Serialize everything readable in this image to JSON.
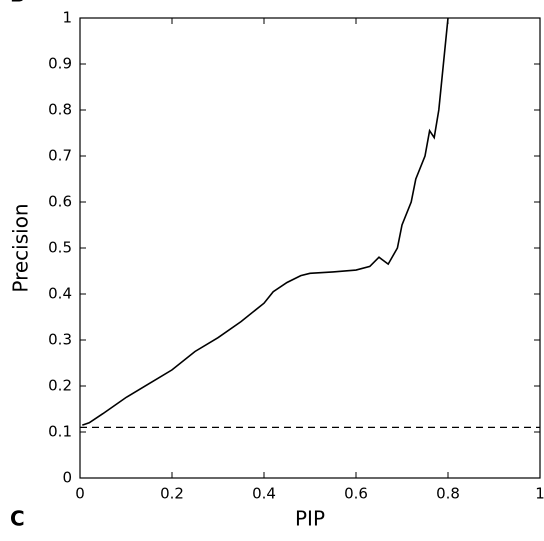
{
  "panel_labels": [
    "B",
    "C"
  ],
  "chart_data": {
    "type": "line",
    "xlabel": "PIP",
    "ylabel": "Precision",
    "x": [
      0.005,
      0.02,
      0.05,
      0.1,
      0.15,
      0.2,
      0.25,
      0.3,
      0.35,
      0.4,
      0.42,
      0.45,
      0.48,
      0.5,
      0.55,
      0.6,
      0.63,
      0.65,
      0.67,
      0.69,
      0.7,
      0.72,
      0.73,
      0.75,
      0.76,
      0.77,
      0.78,
      0.8
    ],
    "series": [
      {
        "color": "#000000",
        "values": [
          0.115,
          0.12,
          0.14,
          0.175,
          0.205,
          0.235,
          0.275,
          0.305,
          0.34,
          0.38,
          0.405,
          0.425,
          0.44,
          0.445,
          0.448,
          0.452,
          0.46,
          0.48,
          0.465,
          0.5,
          0.55,
          0.6,
          0.65,
          0.7,
          0.755,
          0.74,
          0.8,
          1.0
        ]
      }
    ],
    "hline": 0.11,
    "xlim": [
      0,
      1
    ],
    "ylim": [
      0,
      1
    ],
    "xticks": [
      0,
      0.2,
      0.4,
      0.6,
      0.8,
      1
    ],
    "yticks": [
      0,
      0.1,
      0.2,
      0.3,
      0.4,
      0.5,
      0.6,
      0.7,
      0.8,
      0.9,
      1
    ]
  }
}
